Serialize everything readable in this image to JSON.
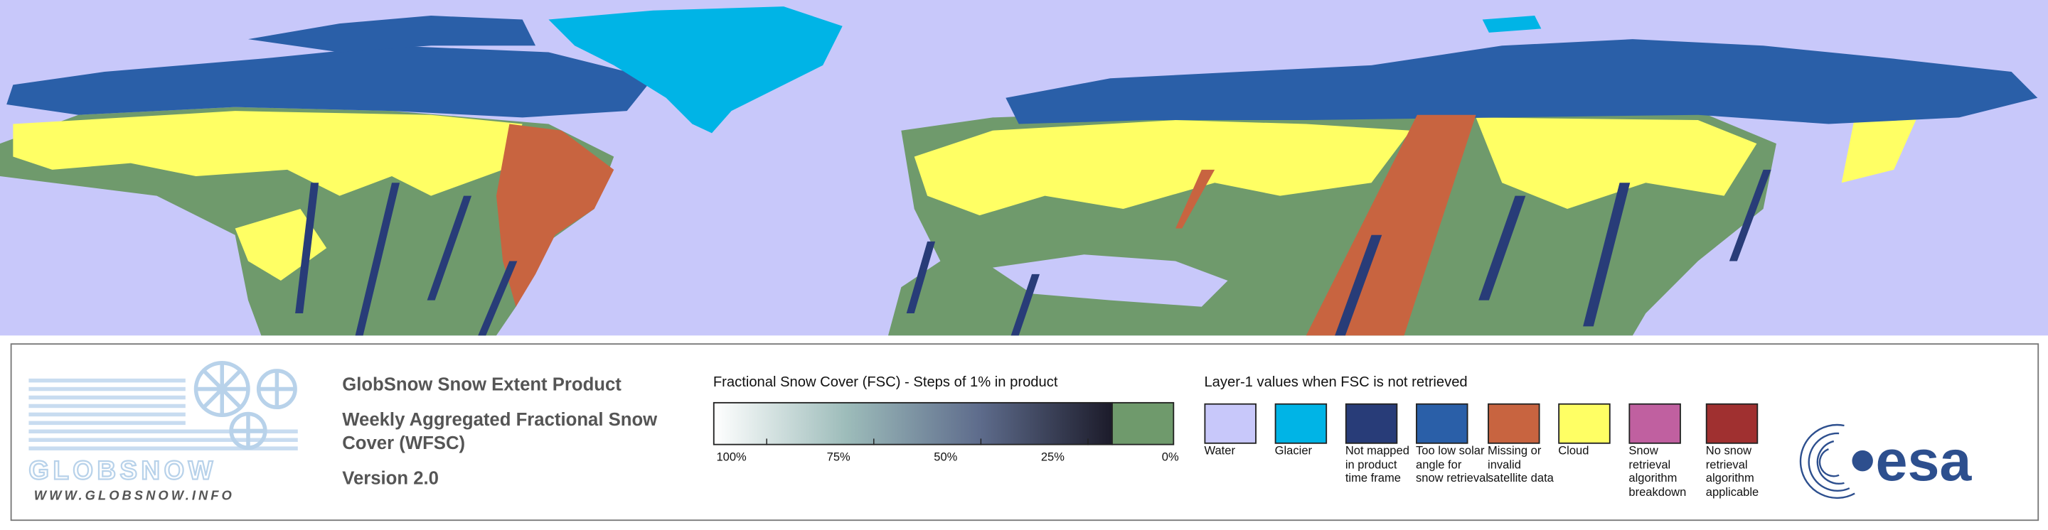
{
  "logo": {
    "brand": "GLOBSNOW",
    "url": "WWW.GLOBSNOW.INFO"
  },
  "product": {
    "title": "GlobSnow Snow Extent Product",
    "subtitle": "Weekly Aggregated Fractional Snow Cover (WFSC)",
    "version": "Version 2.0"
  },
  "fsc_legend": {
    "title": "Fractional Snow Cover (FSC) - Steps of 1% in product",
    "ticks": [
      "100%",
      "75%",
      "50%",
      "25%",
      "0%"
    ],
    "gradient": [
      "#ffffff",
      "#9dbcba",
      "#5e6c8c",
      "#1c1b2a"
    ],
    "zero_color": "#6f9a6c"
  },
  "layer1_legend": {
    "title": "Layer-1 values when FSC is not retrieved",
    "items": [
      {
        "label": "Water",
        "color": "#c8c8fa"
      },
      {
        "label": "Glacier",
        "color": "#00b4e6"
      },
      {
        "label": "Not mapped in product time frame",
        "color": "#283c78"
      },
      {
        "label": "Too low solar angle for snow retrieval",
        "color": "#2a5fa8"
      },
      {
        "label": "Missing or invalid satellite data",
        "color": "#c86440"
      },
      {
        "label": "Cloud",
        "color": "#ffff64"
      },
      {
        "label": "Snow retrieval algorithm breakdown",
        "color": "#c060a0"
      },
      {
        "label": "No snow retrieval algorithm applicable",
        "color": "#a03030"
      }
    ]
  },
  "agency": "esa"
}
